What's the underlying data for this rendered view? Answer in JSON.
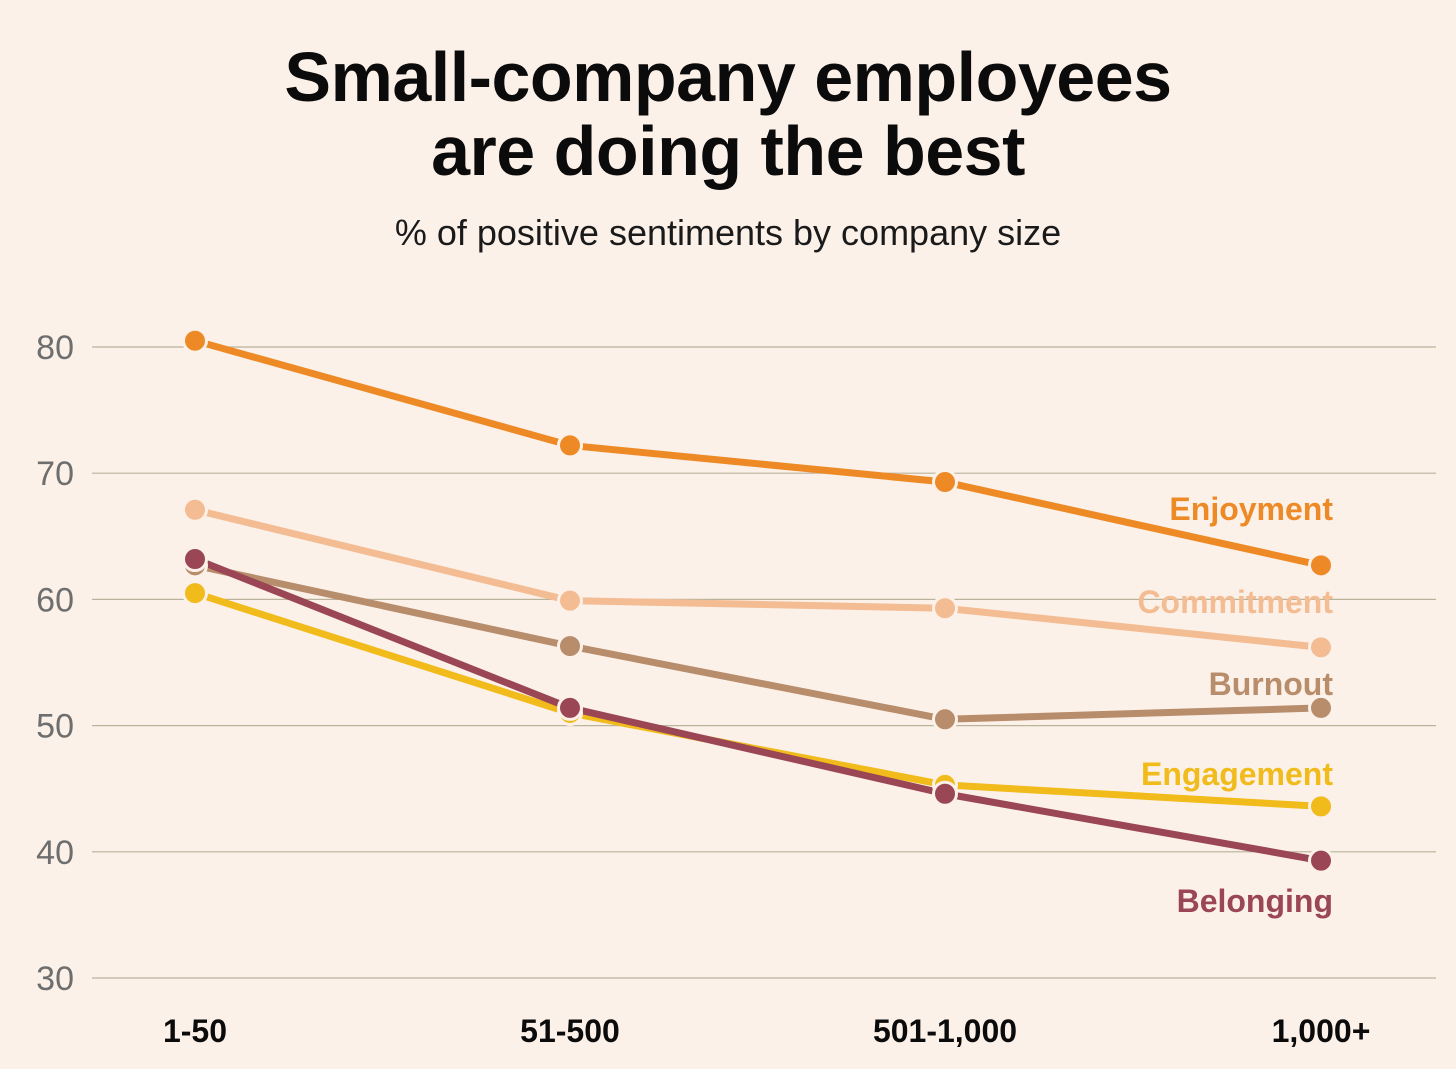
{
  "chart_data": {
    "type": "line",
    "title_line1": "Small-company employees",
    "title_line2": "are doing the best",
    "subtitle": "% of positive sentiments by company size",
    "xlabel": "",
    "ylabel": "",
    "categories": [
      "1-50",
      "51-500",
      "501-1,000",
      "1,000+"
    ],
    "yticks": [
      30,
      40,
      50,
      60,
      70,
      80
    ],
    "ylim": [
      30,
      80
    ],
    "grid": true,
    "legend": "inline labels at right end of lines",
    "series": [
      {
        "name": "Enjoyment",
        "color": "#ee8a26",
        "values": [
          80.5,
          72.2,
          69.3,
          62.7
        ]
      },
      {
        "name": "Commitment",
        "color": "#f4bc92",
        "values": [
          67.1,
          59.9,
          59.3,
          56.2
        ]
      },
      {
        "name": "Burnout",
        "color": "#b88d6c",
        "values": [
          62.7,
          56.3,
          50.5,
          51.4
        ]
      },
      {
        "name": "Engagement",
        "color": "#f0bb1b",
        "values": [
          60.5,
          51.0,
          45.3,
          43.6
        ]
      },
      {
        "name": "Belonging",
        "color": "#9a4654",
        "values": [
          63.2,
          51.4,
          44.6,
          39.3
        ]
      }
    ]
  }
}
